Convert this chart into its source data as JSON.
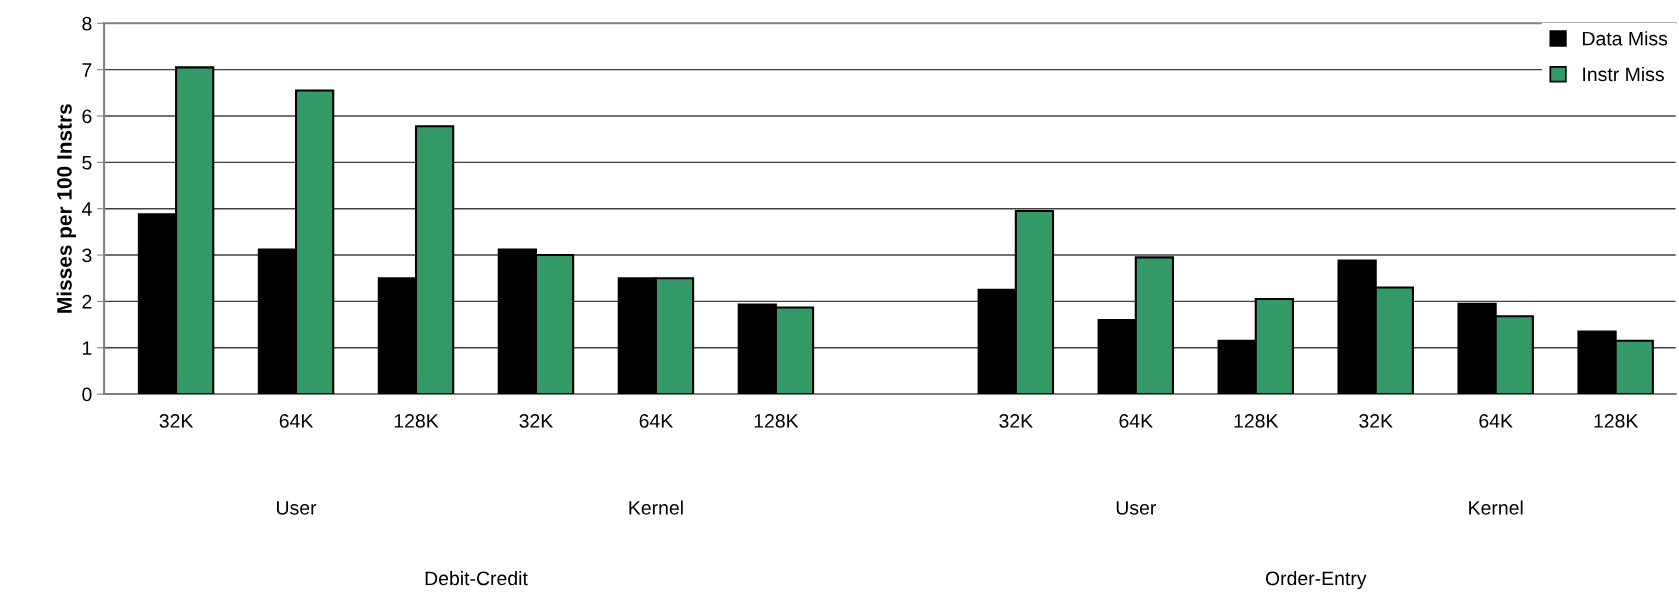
{
  "chart_data": {
    "type": "bar",
    "ylabel": "Misses per 100 Instrs",
    "categories": [
      "32K",
      "64K",
      "128K",
      "32K",
      "64K",
      "128K",
      null,
      "32K",
      "64K",
      "128K",
      "32K",
      "64K",
      "128K"
    ],
    "series": [
      {
        "name": "Data Miss",
        "color": "#000000",
        "values": [
          3.88,
          3.12,
          2.5,
          3.12,
          2.5,
          1.93,
          null,
          2.25,
          1.6,
          1.15,
          2.88,
          1.95,
          1.35
        ]
      },
      {
        "name": "Instr Miss",
        "color": "#339966",
        "values": [
          7.05,
          6.55,
          5.78,
          3.0,
          2.5,
          1.87,
          null,
          3.95,
          2.95,
          2.05,
          2.3,
          1.68,
          1.15
        ]
      }
    ],
    "ylim": [
      0,
      8
    ],
    "yticks": [
      0,
      1,
      2,
      3,
      4,
      5,
      6,
      7,
      8
    ],
    "grid": "y",
    "legend": "top right",
    "annotations": [
      "User",
      "Kernel",
      "User",
      "Kernel",
      "Debit-Credit",
      "Order-Entry"
    ]
  }
}
